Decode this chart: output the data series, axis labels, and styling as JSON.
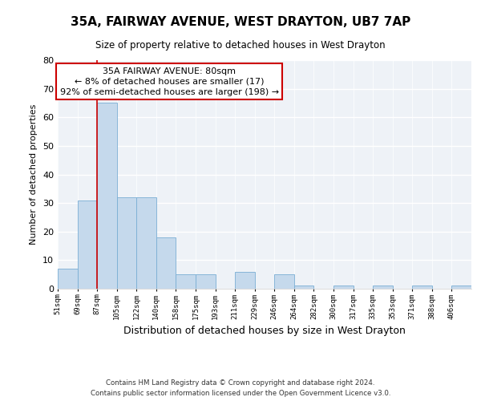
{
  "title": "35A, FAIRWAY AVENUE, WEST DRAYTON, UB7 7AP",
  "subtitle": "Size of property relative to detached houses in West Drayton",
  "xlabel": "Distribution of detached houses by size in West Drayton",
  "ylabel": "Number of detached properties",
  "bin_labels": [
    "51sqm",
    "69sqm",
    "87sqm",
    "105sqm",
    "122sqm",
    "140sqm",
    "158sqm",
    "175sqm",
    "193sqm",
    "211sqm",
    "229sqm",
    "246sqm",
    "264sqm",
    "282sqm",
    "300sqm",
    "317sqm",
    "335sqm",
    "353sqm",
    "371sqm",
    "388sqm",
    "406sqm"
  ],
  "bar_heights": [
    7,
    31,
    65,
    32,
    32,
    18,
    5,
    5,
    0,
    6,
    0,
    5,
    1,
    0,
    1,
    0,
    1,
    0,
    1,
    0,
    1
  ],
  "bar_color": "#c5d9ec",
  "bar_edge_color": "#7aaed4",
  "vline_x_index": 2,
  "vline_color": "#cc0000",
  "ylim": [
    0,
    80
  ],
  "yticks": [
    0,
    10,
    20,
    30,
    40,
    50,
    60,
    70,
    80
  ],
  "annotation_line1": "35A FAIRWAY AVENUE: 80sqm",
  "annotation_line2": "← 8% of detached houses are smaller (17)",
  "annotation_line3": "92% of semi-detached houses are larger (198) →",
  "annotation_box_color": "#ffffff",
  "annotation_box_edge": "#cc0000",
  "footer_line1": "Contains HM Land Registry data © Crown copyright and database right 2024.",
  "footer_line2": "Contains public sector information licensed under the Open Government Licence v3.0.",
  "background_color": "#eef2f7",
  "grid_color": "#ffffff"
}
